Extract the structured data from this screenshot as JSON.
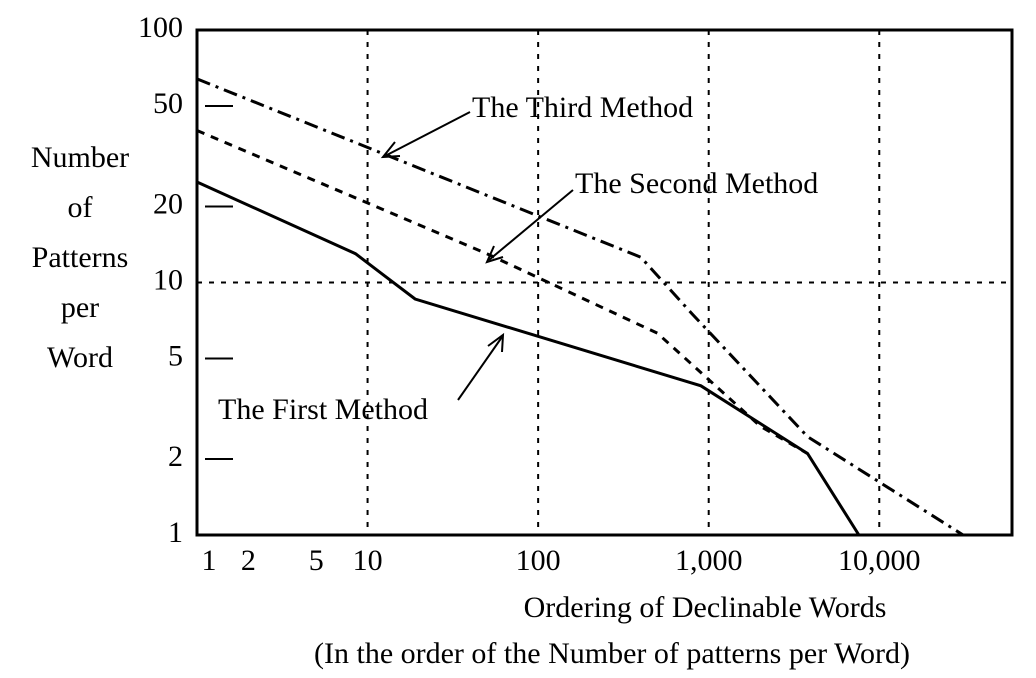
{
  "chart_data": {
    "type": "line",
    "log_x": true,
    "log_y": true,
    "xlabel": [
      "Ordering of Declinable Words",
      "(In the order of the Number of patterns per Word)"
    ],
    "ylabel": [
      "Number",
      "of",
      "Patterns",
      "per",
      "Word"
    ],
    "xlim": [
      1,
      60000
    ],
    "ylim": [
      1,
      100
    ],
    "xticks": [
      1,
      2,
      5,
      10,
      100,
      {
        "value": 1000,
        "label": "1,000"
      },
      {
        "value": 10000,
        "label": "10,000"
      }
    ],
    "yticks": [
      1,
      2,
      5,
      10,
      20,
      50,
      100
    ],
    "grid": true,
    "series": [
      {
        "name": "The First Method",
        "color": "#000000",
        "dash": "solid",
        "x": [
          1,
          8.5,
          19,
          900,
          3800,
          7600
        ],
        "values": [
          25,
          13,
          8.6,
          3.9,
          2.1,
          1
        ]
      },
      {
        "name": "The Second Method",
        "color": "#000000",
        "dash": "dashed",
        "x": [
          1,
          50,
          500,
          2000,
          3800
        ],
        "values": [
          40,
          13,
          6.3,
          2.7,
          2.1
        ]
      },
      {
        "name": "The Third Method",
        "color": "#000000",
        "dash": "dashdot",
        "x": [
          1,
          400,
          800,
          3800,
          31000
        ],
        "values": [
          64,
          12.6,
          7.5,
          2.45,
          1
        ]
      }
    ]
  }
}
